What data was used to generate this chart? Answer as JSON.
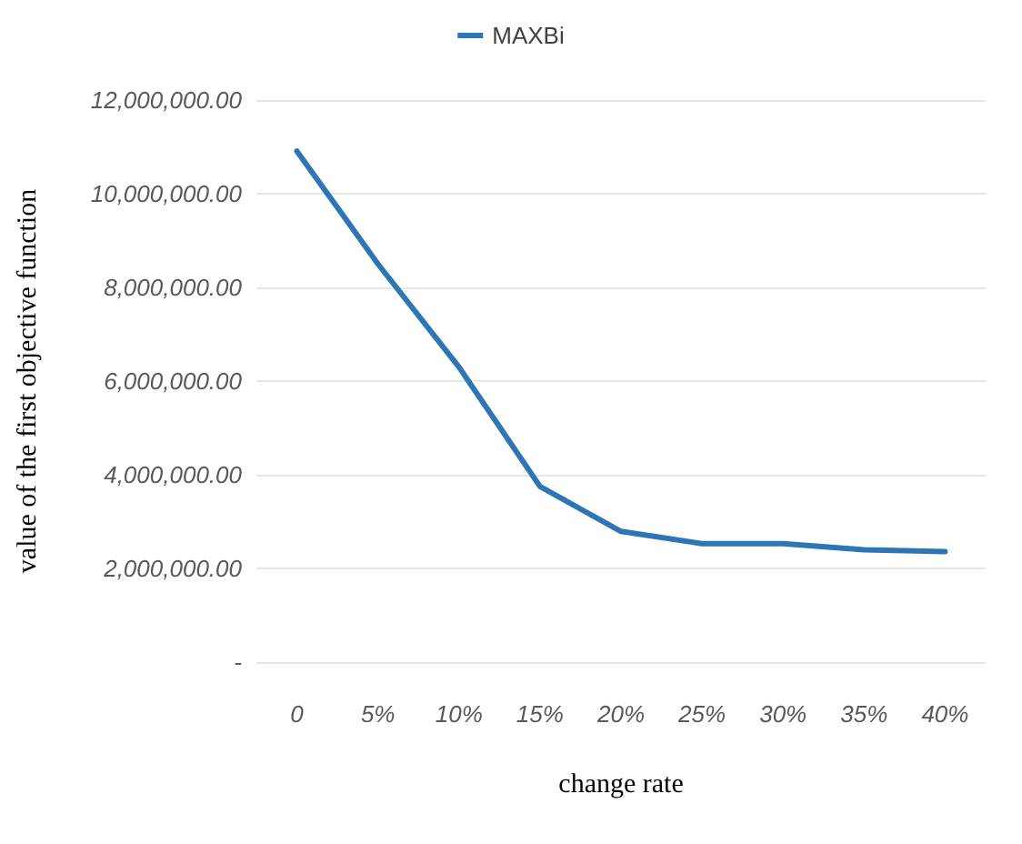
{
  "chart_data": {
    "type": "line",
    "xlabel": "change rate",
    "ylabel": "value of the first objective function",
    "categories": [
      "0",
      "5%",
      "10%",
      "15%",
      "20%",
      "25%",
      "30%",
      "35%",
      "40%"
    ],
    "series": [
      {
        "name": "MAXBi",
        "color": "#2e75b6",
        "values": [
          10910000,
          8500000,
          6300000,
          3750000,
          2790000,
          2530000,
          2530000,
          2400000,
          2360000
        ]
      }
    ],
    "ylim": [
      0,
      12000000
    ],
    "yticks": [
      {
        "value": 0,
        "label": "-"
      },
      {
        "value": 2000000,
        "label": "2,000,000.00"
      },
      {
        "value": 4000000,
        "label": "4,000,000.00"
      },
      {
        "value": 6000000,
        "label": "6,000,000.00"
      },
      {
        "value": 8000000,
        "label": "8,000,000.00"
      },
      {
        "value": 10000000,
        "label": "10,000,000.00"
      },
      {
        "value": 12000000,
        "label": "12,000,000.00"
      }
    ],
    "grid": "y",
    "legend": "top",
    "marker": "none",
    "line_style": "solid"
  }
}
